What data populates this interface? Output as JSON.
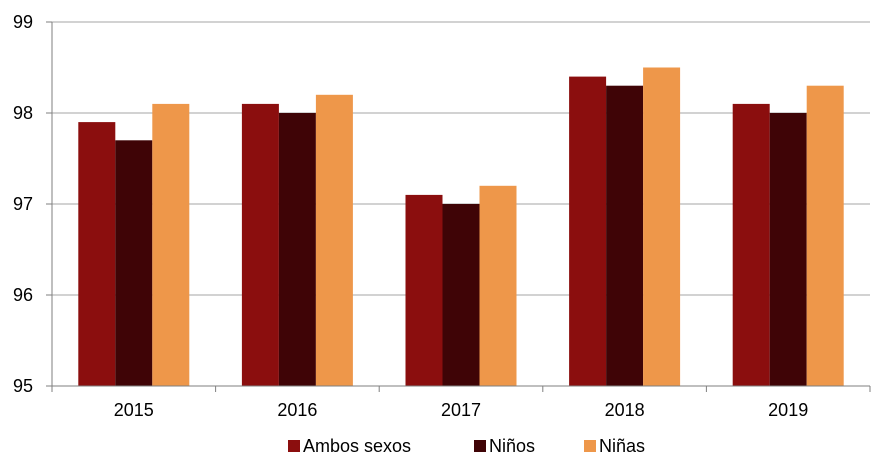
{
  "chart_data": {
    "type": "bar",
    "title": "",
    "xlabel": "",
    "ylabel": "",
    "categories": [
      "2015",
      "2016",
      "2017",
      "2018",
      "2019"
    ],
    "series": [
      {
        "name": "Ambos sexos",
        "color": "#8B0E0E",
        "values": [
          97.9,
          98.1,
          97.1,
          98.4,
          98.1
        ]
      },
      {
        "name": "Niños",
        "color": "#3F0406",
        "values": [
          97.7,
          98.0,
          97.0,
          98.3,
          98.0
        ]
      },
      {
        "name": "Niñas",
        "color": "#EE974A",
        "values": [
          98.1,
          98.2,
          97.2,
          98.5,
          98.3
        ]
      }
    ],
    "ylim": [
      95,
      99
    ],
    "yticks": [
      "95",
      "96",
      "97",
      "98",
      "99"
    ],
    "grid": true,
    "legend_position": "bottom"
  }
}
